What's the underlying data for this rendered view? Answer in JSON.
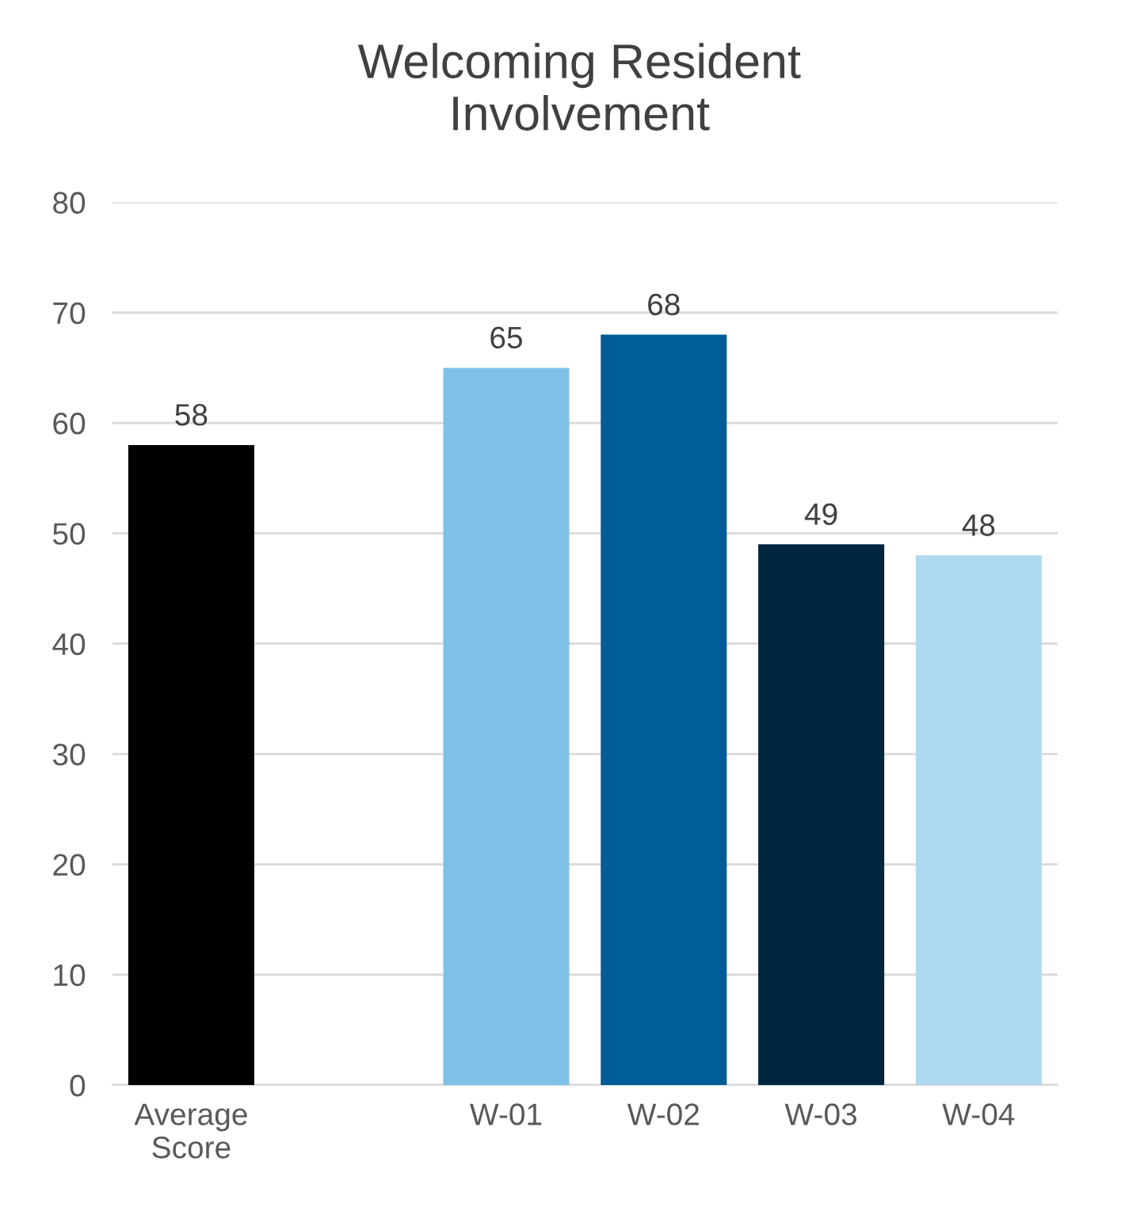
{
  "chart_data": {
    "type": "bar",
    "title": "Welcoming Resident\nInvolvement",
    "categories": [
      "Average\nScore",
      null,
      "W-01",
      "W-02",
      "W-03",
      "W-04"
    ],
    "values": [
      58,
      null,
      65,
      68,
      49,
      48
    ],
    "colors": [
      "#000000",
      "#ffffff",
      "#7fc0e8",
      "#005c96",
      "#00253f",
      "#afd9ef"
    ],
    "ylim": [
      0,
      80
    ],
    "yticks": [
      0,
      10,
      20,
      30,
      40,
      50,
      60,
      70,
      80
    ],
    "grid": "y",
    "data_labels": true
  }
}
